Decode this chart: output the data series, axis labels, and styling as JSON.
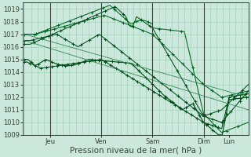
{
  "background_color": "#cce8dc",
  "plot_bg_color": "#cce8dc",
  "grid_color": "#99ccb3",
  "line_color_dark": "#004d1a",
  "line_color_mid": "#006622",
  "line_color_light": "#338855",
  "ylim": [
    1009,
    1019.5
  ],
  "yticks": [
    1009,
    1010,
    1011,
    1012,
    1013,
    1014,
    1015,
    1016,
    1017,
    1018,
    1019
  ],
  "xlabel": "Pression niveau de la mer( hPa )",
  "xlabel_fontsize": 7.5,
  "tick_fontsize": 6,
  "day_labels": [
    "Jeu",
    "Ven",
    "Sam",
    "Dim",
    "Lun"
  ],
  "day_positions": [
    24,
    72,
    120,
    168,
    192
  ],
  "xlim": [
    -2,
    210
  ],
  "n_points": 220
}
